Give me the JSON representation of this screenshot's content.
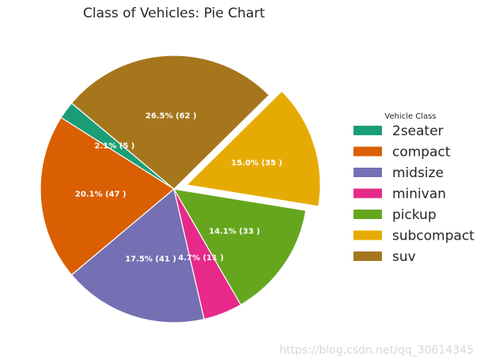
{
  "chart_data": {
    "type": "pie",
    "title": "Class of Vehicles: Pie Chart",
    "legend_title": "Vehicle Class",
    "legend_placement": "right",
    "start_angle": 140,
    "slices": [
      {
        "name": "2seater",
        "value": 5,
        "label": "2.1% (5 )",
        "color": "#1b9e77",
        "explode": 0
      },
      {
        "name": "compact",
        "value": 47,
        "label": "20.1% (47 )",
        "color": "#d95f02",
        "explode": 0
      },
      {
        "name": "midsize",
        "value": 41,
        "label": "17.5% (41 )",
        "color": "#7570b3",
        "explode": 0
      },
      {
        "name": "minivan",
        "value": 11,
        "label": "4.7% (11 )",
        "color": "#e7298a",
        "explode": 0
      },
      {
        "name": "pickup",
        "value": 33,
        "label": "14.1% (33 )",
        "color": "#66a61e",
        "explode": 0
      },
      {
        "name": "subcompact",
        "value": 35,
        "label": "15.0% (35 )",
        "color": "#e6ab02",
        "explode": 0.1
      },
      {
        "name": "suv",
        "value": 62,
        "label": "26.5% (62 )",
        "color": "#a6761d",
        "explode": 0
      }
    ]
  },
  "watermark": "https://blog.csdn.net/qq_30614345"
}
